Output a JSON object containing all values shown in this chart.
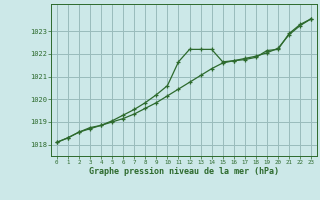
{
  "xlabel": "Graphe pression niveau de la mer (hPa)",
  "background_color": "#cce8e8",
  "grid_color": "#99bbbb",
  "line_color": "#2d6a2d",
  "xlim": [
    -0.5,
    23.5
  ],
  "ylim": [
    1017.5,
    1024.2
  ],
  "yticks": [
    1018,
    1019,
    1020,
    1021,
    1022,
    1023
  ],
  "xticks": [
    0,
    1,
    2,
    3,
    4,
    5,
    6,
    7,
    8,
    9,
    10,
    11,
    12,
    13,
    14,
    15,
    16,
    17,
    18,
    19,
    20,
    21,
    22,
    23
  ],
  "series1_x": [
    0,
    1,
    2,
    3,
    4,
    5,
    6,
    7,
    8,
    9,
    10,
    11,
    12,
    13,
    14,
    15,
    16,
    17,
    18,
    19,
    20,
    21,
    22,
    23
  ],
  "series1_y": [
    1018.1,
    1018.3,
    1018.55,
    1018.7,
    1018.85,
    1019.05,
    1019.3,
    1019.55,
    1019.85,
    1020.2,
    1020.6,
    1021.65,
    1022.2,
    1022.2,
    1022.2,
    1021.65,
    1021.7,
    1021.75,
    1021.85,
    1022.15,
    1022.2,
    1022.9,
    1023.3,
    1023.55
  ],
  "series2_x": [
    0,
    1,
    2,
    3,
    4,
    5,
    6,
    7,
    8,
    9,
    10,
    11,
    12,
    13,
    14,
    15,
    16,
    17,
    18,
    19,
    20,
    21,
    22,
    23
  ],
  "series2_y": [
    1018.1,
    1018.3,
    1018.55,
    1018.75,
    1018.85,
    1019.0,
    1019.15,
    1019.35,
    1019.6,
    1019.85,
    1020.15,
    1020.45,
    1020.75,
    1021.05,
    1021.35,
    1021.6,
    1021.7,
    1021.8,
    1021.9,
    1022.05,
    1022.25,
    1022.85,
    1023.25,
    1023.55
  ]
}
